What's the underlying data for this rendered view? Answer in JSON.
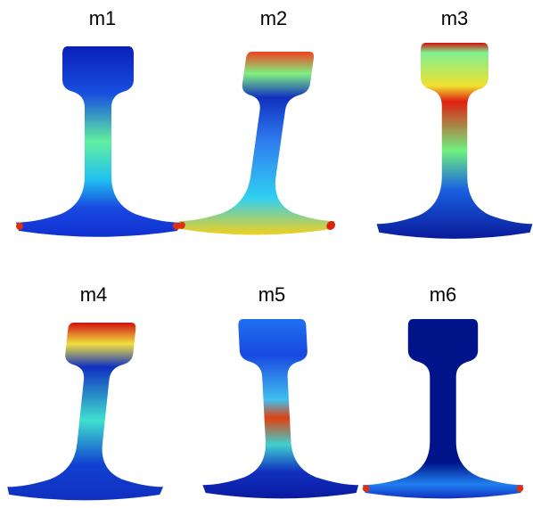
{
  "panels": [
    {
      "label": "m1"
    },
    {
      "label": "m2"
    },
    {
      "label": "m3"
    },
    {
      "label": "m4"
    },
    {
      "label": "m5"
    },
    {
      "label": "m6"
    }
  ]
}
